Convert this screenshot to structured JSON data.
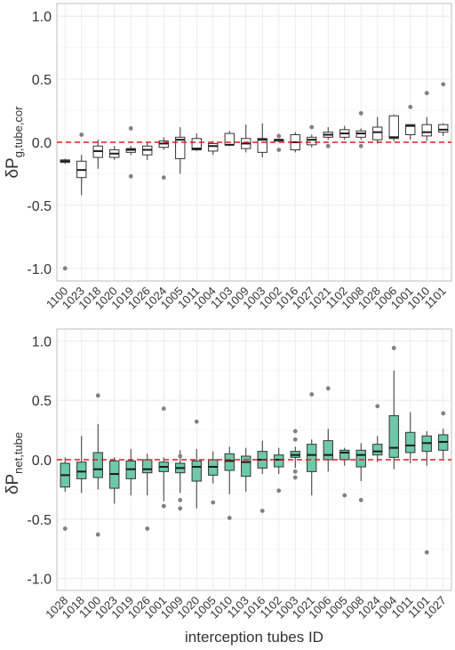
{
  "chart_data": [
    {
      "type": "box",
      "ylabel_main": "δP",
      "ylabel_sub": "g,tube,cor",
      "xlabel": "",
      "ylim": [
        -1.1,
        1.1
      ],
      "yticks": [
        "1.0",
        "0.5",
        "0.0",
        "-0.5",
        "-1.0"
      ],
      "ytick_values": [
        1.0,
        0.5,
        0.0,
        -0.5,
        -1.0
      ],
      "box_fill": "#ffffff",
      "reference_line": {
        "y": 0.0,
        "color": "#e41a1c",
        "style": "dashed"
      },
      "categories": [
        "1100",
        "1023",
        "1018",
        "1020",
        "1019",
        "1026",
        "1024",
        "1005",
        "1011",
        "1004",
        "1103",
        "1009",
        "1003",
        "1002",
        "1016",
        "1027",
        "1021",
        "1102",
        "1008",
        "1028",
        "1006",
        "1001",
        "1010",
        "1101"
      ],
      "boxes": [
        {
          "q1": -0.16,
          "median": -0.15,
          "q3": -0.14,
          "wlo": -0.17,
          "whi": -0.13,
          "outliers": [
            -1.0
          ]
        },
        {
          "q1": -0.28,
          "median": -0.22,
          "q3": -0.15,
          "wlo": -0.42,
          "whi": -0.1,
          "outliers": [
            0.06
          ]
        },
        {
          "q1": -0.12,
          "median": -0.07,
          "q3": -0.03,
          "wlo": -0.21,
          "whi": 0.02,
          "outliers": []
        },
        {
          "q1": -0.12,
          "median": -0.09,
          "q3": -0.06,
          "wlo": -0.14,
          "whi": -0.03,
          "outliers": []
        },
        {
          "q1": -0.08,
          "median": -0.06,
          "q3": -0.05,
          "wlo": -0.1,
          "whi": -0.03,
          "outliers": [
            0.11,
            -0.27
          ]
        },
        {
          "q1": -0.1,
          "median": -0.06,
          "q3": -0.03,
          "wlo": -0.14,
          "whi": 0.0,
          "outliers": []
        },
        {
          "q1": -0.04,
          "median": -0.01,
          "q3": 0.01,
          "wlo": -0.06,
          "whi": 0.04,
          "outliers": [
            -0.28
          ]
        },
        {
          "q1": -0.13,
          "median": 0.02,
          "q3": 0.04,
          "wlo": -0.25,
          "whi": 0.12,
          "outliers": []
        },
        {
          "q1": -0.06,
          "median": -0.05,
          "q3": 0.03,
          "wlo": -0.07,
          "whi": 0.07,
          "outliers": []
        },
        {
          "q1": -0.07,
          "median": -0.03,
          "q3": -0.01,
          "wlo": -0.1,
          "whi": 0.01,
          "outliers": []
        },
        {
          "q1": -0.02,
          "median": -0.02,
          "q3": 0.07,
          "wlo": -0.03,
          "whi": 0.09,
          "outliers": []
        },
        {
          "q1": -0.05,
          "median": -0.01,
          "q3": 0.03,
          "wlo": -0.08,
          "whi": 0.14,
          "outliers": []
        },
        {
          "q1": -0.08,
          "median": 0.02,
          "q3": 0.03,
          "wlo": -0.12,
          "whi": 0.15,
          "outliers": []
        },
        {
          "q1": 0.01,
          "median": 0.02,
          "q3": 0.02,
          "wlo": 0.0,
          "whi": 0.03,
          "outliers": [
            0.05,
            -0.06
          ]
        },
        {
          "q1": -0.06,
          "median": 0.0,
          "q3": 0.06,
          "wlo": -0.08,
          "whi": 0.08,
          "outliers": []
        },
        {
          "q1": -0.02,
          "median": 0.02,
          "q3": 0.04,
          "wlo": -0.04,
          "whi": 0.06,
          "outliers": [
            0.12
          ]
        },
        {
          "q1": 0.04,
          "median": 0.06,
          "q3": 0.08,
          "wlo": 0.02,
          "whi": 0.12,
          "outliers": [
            -0.03
          ]
        },
        {
          "q1": 0.04,
          "median": 0.07,
          "q3": 0.1,
          "wlo": 0.02,
          "whi": 0.13,
          "outliers": []
        },
        {
          "q1": 0.04,
          "median": 0.07,
          "q3": 0.09,
          "wlo": 0.02,
          "whi": 0.11,
          "outliers": [
            0.23,
            -0.03
          ]
        },
        {
          "q1": 0.02,
          "median": 0.08,
          "q3": 0.12,
          "wlo": -0.01,
          "whi": 0.2,
          "outliers": []
        },
        {
          "q1": 0.03,
          "median": 0.04,
          "q3": 0.21,
          "wlo": 0.01,
          "whi": 0.22,
          "outliers": []
        },
        {
          "q1": 0.06,
          "median": 0.13,
          "q3": 0.14,
          "wlo": 0.02,
          "whi": 0.14,
          "outliers": [
            0.28
          ]
        },
        {
          "q1": 0.05,
          "median": 0.08,
          "q3": 0.14,
          "wlo": 0.01,
          "whi": 0.2,
          "outliers": [
            0.39
          ]
        },
        {
          "q1": 0.08,
          "median": 0.1,
          "q3": 0.14,
          "wlo": 0.05,
          "whi": 0.15,
          "outliers": [
            0.46
          ]
        }
      ]
    },
    {
      "type": "box",
      "ylabel_main": "δP",
      "ylabel_sub": "net,tube",
      "xlabel": "interception tubes ID",
      "ylim": [
        -1.1,
        1.1
      ],
      "yticks": [
        "1.0",
        "0.5",
        "0.0",
        "-0.5",
        "-1.0"
      ],
      "ytick_values": [
        1.0,
        0.5,
        0.0,
        -0.5,
        -1.0
      ],
      "box_fill": "#6dc9a8",
      "reference_line": {
        "y": 0.0,
        "color": "#e41a1c",
        "style": "dashed"
      },
      "categories": [
        "1028",
        "1018",
        "1100",
        "1023",
        "1019",
        "1026",
        "1001",
        "1009",
        "1020",
        "1005",
        "1010",
        "1103",
        "1016",
        "1102",
        "1003",
        "1021",
        "1006",
        "1005",
        "1008",
        "1024",
        "1004",
        "1011",
        "1101",
        "1027"
      ],
      "boxes": [
        {
          "q1": -0.23,
          "median": -0.13,
          "q3": -0.03,
          "wlo": -0.27,
          "whi": 0.02,
          "outliers": [
            -0.58
          ]
        },
        {
          "q1": -0.16,
          "median": -0.1,
          "q3": -0.02,
          "wlo": -0.28,
          "whi": 0.2,
          "outliers": []
        },
        {
          "q1": -0.15,
          "median": -0.08,
          "q3": 0.06,
          "wlo": -0.25,
          "whi": 0.3,
          "outliers": [
            0.54,
            -0.63
          ]
        },
        {
          "q1": -0.24,
          "median": -0.12,
          "q3": -0.01,
          "wlo": -0.37,
          "whi": 0.02,
          "outliers": []
        },
        {
          "q1": -0.16,
          "median": -0.08,
          "q3": -0.01,
          "wlo": -0.3,
          "whi": 0.09,
          "outliers": []
        },
        {
          "q1": -0.11,
          "median": -0.08,
          "q3": 0.0,
          "wlo": -0.3,
          "whi": 0.05,
          "outliers": [
            -0.58
          ]
        },
        {
          "q1": -0.1,
          "median": -0.06,
          "q3": -0.02,
          "wlo": -0.35,
          "whi": 0.02,
          "outliers": [
            0.43,
            -0.39
          ]
        },
        {
          "q1": -0.11,
          "median": -0.07,
          "q3": -0.03,
          "wlo": -0.28,
          "whi": 0.08,
          "outliers": [
            0.03,
            -0.34,
            -0.41
          ]
        },
        {
          "q1": -0.18,
          "median": -0.06,
          "q3": -0.01,
          "wlo": -0.41,
          "whi": 0.09,
          "outliers": [
            0.32
          ]
        },
        {
          "q1": -0.13,
          "median": -0.06,
          "q3": 0.0,
          "wlo": -0.2,
          "whi": 0.07,
          "outliers": [
            -0.36
          ]
        },
        {
          "q1": -0.09,
          "median": -0.01,
          "q3": 0.05,
          "wlo": -0.29,
          "whi": 0.11,
          "outliers": [
            -0.49
          ]
        },
        {
          "q1": -0.14,
          "median": -0.02,
          "q3": 0.03,
          "wlo": -0.27,
          "whi": 0.1,
          "outliers": []
        },
        {
          "q1": -0.07,
          "median": 0.0,
          "q3": 0.07,
          "wlo": -0.12,
          "whi": 0.16,
          "outliers": [
            -0.43
          ]
        },
        {
          "q1": -0.06,
          "median": 0.0,
          "q3": 0.04,
          "wlo": -0.12,
          "whi": 0.1,
          "outliers": [
            -0.26
          ]
        },
        {
          "q1": 0.02,
          "median": 0.04,
          "q3": 0.07,
          "wlo": -0.07,
          "whi": 0.11,
          "outliers": [
            0.24,
            0.17,
            -0.1,
            -0.15
          ]
        },
        {
          "q1": -0.1,
          "median": 0.04,
          "q3": 0.13,
          "wlo": -0.3,
          "whi": 0.17,
          "outliers": [
            0.55
          ]
        },
        {
          "q1": 0.0,
          "median": 0.04,
          "q3": 0.16,
          "wlo": -0.1,
          "whi": 0.26,
          "outliers": [
            0.6
          ]
        },
        {
          "q1": 0.0,
          "median": 0.06,
          "q3": 0.08,
          "wlo": -0.05,
          "whi": 0.1,
          "outliers": [
            -0.3
          ]
        },
        {
          "q1": -0.06,
          "median": 0.04,
          "q3": 0.08,
          "wlo": -0.18,
          "whi": 0.14,
          "outliers": [
            -0.34
          ]
        },
        {
          "q1": 0.04,
          "median": 0.07,
          "q3": 0.13,
          "wlo": -0.02,
          "whi": 0.2,
          "outliers": [
            0.45
          ]
        },
        {
          "q1": 0.02,
          "median": 0.1,
          "q3": 0.37,
          "wlo": -0.08,
          "whi": 0.75,
          "outliers": [
            0.94
          ]
        },
        {
          "q1": 0.06,
          "median": 0.12,
          "q3": 0.23,
          "wlo": -0.03,
          "whi": 0.4,
          "outliers": []
        },
        {
          "q1": 0.07,
          "median": 0.14,
          "q3": 0.2,
          "wlo": -0.05,
          "whi": 0.24,
          "outliers": [
            -0.78
          ]
        },
        {
          "q1": 0.08,
          "median": 0.15,
          "q3": 0.21,
          "wlo": 0.01,
          "whi": 0.26,
          "outliers": [
            0.39
          ]
        }
      ]
    }
  ]
}
